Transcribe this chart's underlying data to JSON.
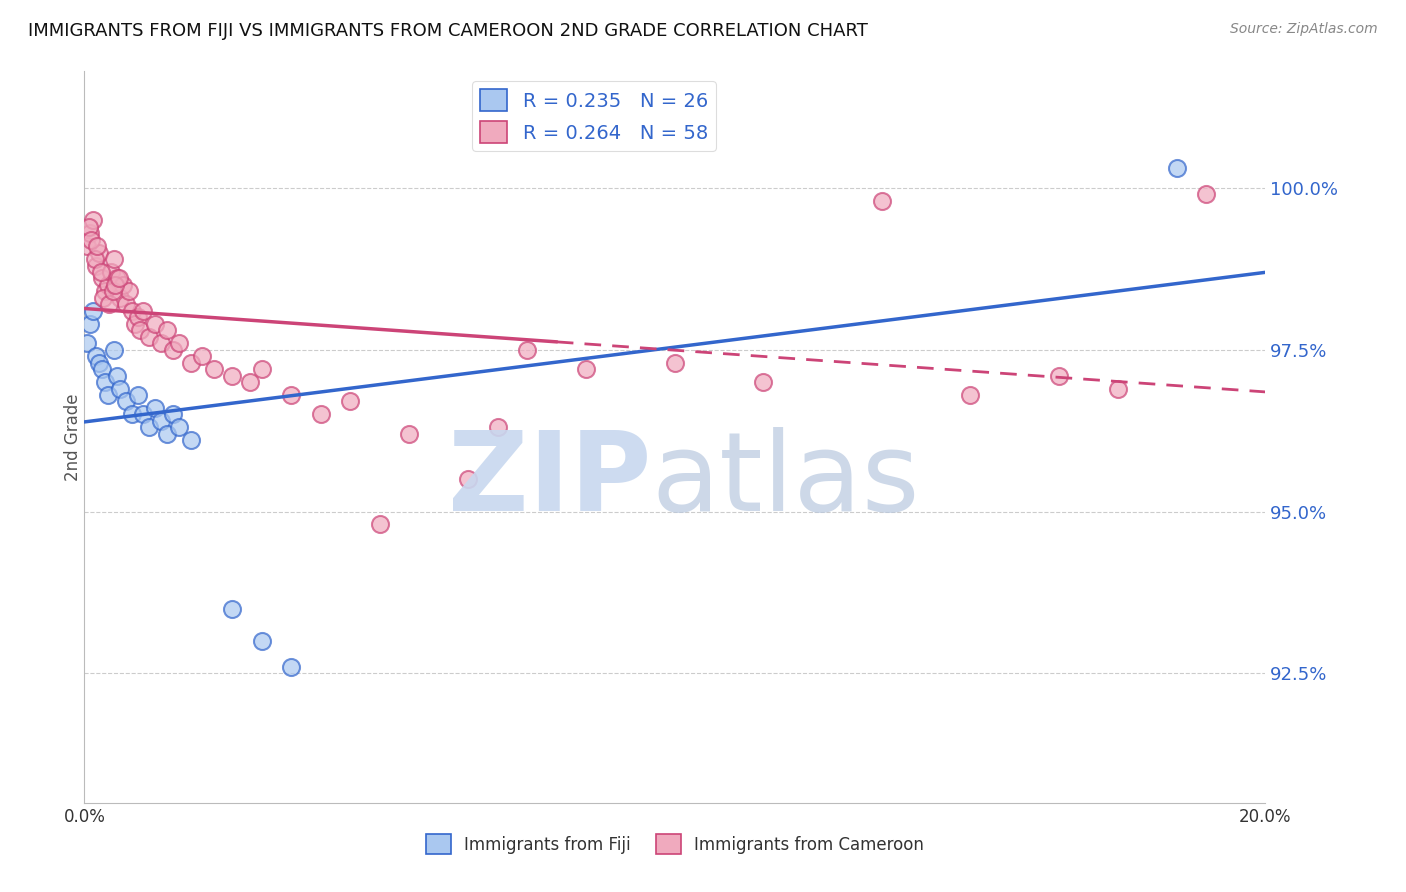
{
  "title": "IMMIGRANTS FROM FIJI VS IMMIGRANTS FROM CAMEROON 2ND GRADE CORRELATION CHART",
  "source": "Source: ZipAtlas.com",
  "ylabel": "2nd Grade",
  "xlim": [
    0.0,
    20.0
  ],
  "ylim": [
    90.5,
    101.8
  ],
  "yticks": [
    92.5,
    95.0,
    97.5,
    100.0
  ],
  "ytick_labels": [
    "92.5%",
    "95.0%",
    "97.5%",
    "100.0%"
  ],
  "xticks": [
    0.0,
    4.0,
    8.0,
    12.0,
    16.0,
    20.0
  ],
  "xtick_labels": [
    "0.0%",
    "",
    "",
    "",
    "",
    "20.0%"
  ],
  "fiji_line_color": "#3366cc",
  "cameroon_line_color": "#cc4477",
  "fiji_scatter_fill": "#aac8f0",
  "cameroon_scatter_fill": "#f0aabe",
  "fiji_R": 0.235,
  "fiji_N": 26,
  "cameroon_R": 0.264,
  "cameroon_N": 58,
  "legend_text_color": "#3366cc",
  "background_color": "#ffffff",
  "fiji_x": [
    0.05,
    0.1,
    0.15,
    0.2,
    0.25,
    0.3,
    0.35,
    0.4,
    0.5,
    0.55,
    0.6,
    0.7,
    0.8,
    0.9,
    1.0,
    1.1,
    1.2,
    1.3,
    1.4,
    1.5,
    1.6,
    1.8,
    2.5,
    3.0,
    3.5,
    18.5
  ],
  "fiji_y": [
    97.6,
    97.9,
    98.1,
    97.4,
    97.3,
    97.2,
    97.0,
    96.8,
    97.5,
    97.1,
    96.9,
    96.7,
    96.5,
    96.8,
    96.5,
    96.3,
    96.6,
    96.4,
    96.2,
    96.5,
    96.3,
    96.1,
    93.5,
    93.0,
    92.6,
    100.3
  ],
  "cameroon_x": [
    0.05,
    0.1,
    0.15,
    0.2,
    0.25,
    0.3,
    0.35,
    0.4,
    0.45,
    0.5,
    0.55,
    0.6,
    0.65,
    0.7,
    0.75,
    0.8,
    0.85,
    0.9,
    0.95,
    1.0,
    1.1,
    1.2,
    1.3,
    1.4,
    1.5,
    1.6,
    1.8,
    2.0,
    2.2,
    2.5,
    2.8,
    3.0,
    3.5,
    4.0,
    4.5,
    5.0,
    5.5,
    6.5,
    7.0,
    7.5,
    8.5,
    10.0,
    11.5,
    13.5,
    15.0,
    16.5,
    17.5,
    19.0,
    0.08,
    0.12,
    0.18,
    0.22,
    0.28,
    0.32,
    0.42,
    0.48,
    0.52,
    0.58
  ],
  "cameroon_y": [
    99.1,
    99.3,
    99.5,
    98.8,
    99.0,
    98.6,
    98.4,
    98.5,
    98.7,
    98.9,
    98.6,
    98.3,
    98.5,
    98.2,
    98.4,
    98.1,
    97.9,
    98.0,
    97.8,
    98.1,
    97.7,
    97.9,
    97.6,
    97.8,
    97.5,
    97.6,
    97.3,
    97.4,
    97.2,
    97.1,
    97.0,
    97.2,
    96.8,
    96.5,
    96.7,
    94.8,
    96.2,
    95.5,
    96.3,
    97.5,
    97.2,
    97.3,
    97.0,
    99.8,
    96.8,
    97.1,
    96.9,
    99.9,
    99.4,
    99.2,
    98.9,
    99.1,
    98.7,
    98.3,
    98.2,
    98.4,
    98.5,
    98.6
  ]
}
